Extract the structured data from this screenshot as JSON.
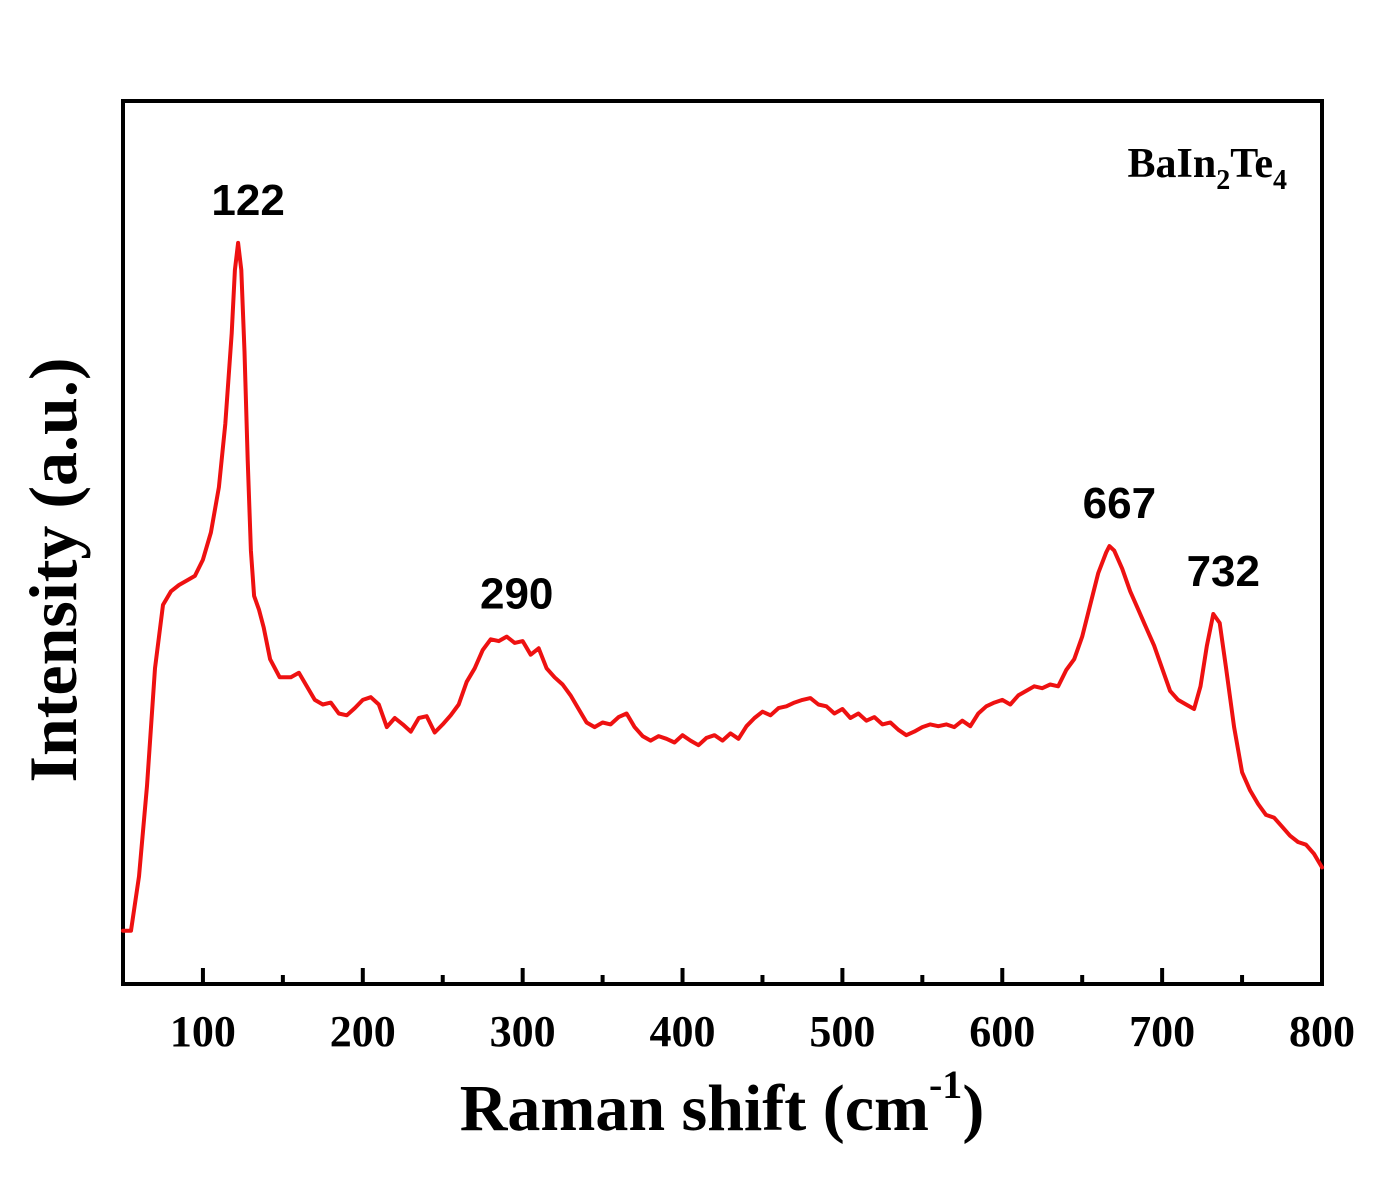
{
  "chart_data": {
    "type": "line",
    "title": "",
    "xlabel_main": "Raman shift (cm",
    "xlabel_sup": "-1",
    "xlabel_close": ")",
    "ylabel": "Intensity (a.u.)",
    "sample_label": {
      "parts": [
        {
          "text": "BaIn",
          "sub": false
        },
        {
          "text": "2",
          "sub": true
        },
        {
          "text": "Te",
          "sub": false
        },
        {
          "text": "4",
          "sub": true
        }
      ]
    },
    "xlim": [
      50,
      800
    ],
    "ylim": [
      0,
      100
    ],
    "x_ticks": [
      100,
      200,
      300,
      400,
      500,
      600,
      700,
      800
    ],
    "x_tick_labels": [
      "100",
      "200",
      "300",
      "400",
      "500",
      "600",
      "700",
      "800"
    ],
    "x_minor_ticks": [
      150,
      250,
      350,
      450,
      550,
      650,
      750
    ],
    "y_ticks_visible": false,
    "grid": false,
    "color": "#ee1111",
    "series": [
      {
        "points": [
          [
            50,
            6.0
          ],
          [
            55,
            6.0
          ],
          [
            60,
            12
          ],
          [
            65,
            22
          ],
          [
            70,
            35
          ],
          [
            75,
            42
          ],
          [
            80,
            43.5
          ],
          [
            85,
            44.2
          ],
          [
            90,
            44.7
          ],
          [
            95,
            45.2
          ],
          [
            100,
            47.0
          ],
          [
            105,
            50.0
          ],
          [
            110,
            55.0
          ],
          [
            114,
            62.0
          ],
          [
            118,
            72.0
          ],
          [
            120,
            79.0
          ],
          [
            122,
            82.0
          ],
          [
            124,
            79.0
          ],
          [
            126,
            70.0
          ],
          [
            128,
            58.0
          ],
          [
            130,
            48.0
          ],
          [
            132,
            43.0
          ],
          [
            135,
            41.5
          ],
          [
            138,
            39.5
          ],
          [
            142,
            36.0
          ],
          [
            148,
            34.0
          ],
          [
            155,
            34.0
          ],
          [
            160,
            34.5
          ],
          [
            165,
            33.0
          ],
          [
            170,
            31.5
          ],
          [
            175,
            31.0
          ],
          [
            180,
            31.2
          ],
          [
            185,
            30.0
          ],
          [
            190,
            29.8
          ],
          [
            195,
            30.6
          ],
          [
            200,
            31.5
          ],
          [
            205,
            31.8
          ],
          [
            210,
            31.0
          ],
          [
            215,
            28.5
          ],
          [
            220,
            29.5
          ],
          [
            225,
            28.8
          ],
          [
            230,
            28.0
          ],
          [
            235,
            29.5
          ],
          [
            240,
            29.7
          ],
          [
            245,
            27.9
          ],
          [
            250,
            28.8
          ],
          [
            255,
            29.8
          ],
          [
            260,
            31.0
          ],
          [
            265,
            33.5
          ],
          [
            270,
            35.0
          ],
          [
            275,
            37.0
          ],
          [
            280,
            38.2
          ],
          [
            285,
            38.0
          ],
          [
            290,
            38.5
          ],
          [
            295,
            37.8
          ],
          [
            300,
            38.0
          ],
          [
            305,
            36.5
          ],
          [
            310,
            37.2
          ],
          [
            315,
            35.0
          ],
          [
            320,
            34.0
          ],
          [
            325,
            33.2
          ],
          [
            330,
            32.0
          ],
          [
            335,
            30.5
          ],
          [
            340,
            29.0
          ],
          [
            345,
            28.5
          ],
          [
            350,
            29.0
          ],
          [
            355,
            28.8
          ],
          [
            360,
            29.6
          ],
          [
            365,
            30.0
          ],
          [
            370,
            28.5
          ],
          [
            375,
            27.5
          ],
          [
            380,
            27.0
          ],
          [
            385,
            27.5
          ],
          [
            390,
            27.2
          ],
          [
            395,
            26.8
          ],
          [
            400,
            27.6
          ],
          [
            405,
            27.0
          ],
          [
            410,
            26.5
          ],
          [
            415,
            27.3
          ],
          [
            420,
            27.6
          ],
          [
            425,
            27.0
          ],
          [
            430,
            27.8
          ],
          [
            435,
            27.2
          ],
          [
            440,
            28.6
          ],
          [
            445,
            29.5
          ],
          [
            450,
            30.2
          ],
          [
            455,
            29.8
          ],
          [
            460,
            30.6
          ],
          [
            465,
            30.8
          ],
          [
            470,
            31.2
          ],
          [
            475,
            31.5
          ],
          [
            480,
            31.7
          ],
          [
            485,
            31.0
          ],
          [
            490,
            30.8
          ],
          [
            495,
            30.0
          ],
          [
            500,
            30.5
          ],
          [
            505,
            29.5
          ],
          [
            510,
            30.0
          ],
          [
            515,
            29.2
          ],
          [
            520,
            29.6
          ],
          [
            525,
            28.8
          ],
          [
            530,
            29.0
          ],
          [
            535,
            28.2
          ],
          [
            540,
            27.6
          ],
          [
            545,
            28.0
          ],
          [
            550,
            28.5
          ],
          [
            555,
            28.8
          ],
          [
            560,
            28.6
          ],
          [
            565,
            28.8
          ],
          [
            570,
            28.5
          ],
          [
            575,
            29.2
          ],
          [
            580,
            28.6
          ],
          [
            585,
            30.0
          ],
          [
            590,
            30.8
          ],
          [
            595,
            31.2
          ],
          [
            600,
            31.5
          ],
          [
            605,
            31.0
          ],
          [
            610,
            32.0
          ],
          [
            615,
            32.5
          ],
          [
            620,
            33.0
          ],
          [
            625,
            32.8
          ],
          [
            630,
            33.2
          ],
          [
            635,
            33.0
          ],
          [
            640,
            34.8
          ],
          [
            645,
            36.0
          ],
          [
            650,
            38.5
          ],
          [
            655,
            42.0
          ],
          [
            660,
            45.5
          ],
          [
            665,
            47.8
          ],
          [
            667,
            48.5
          ],
          [
            670,
            48.0
          ],
          [
            675,
            46.0
          ],
          [
            680,
            43.5
          ],
          [
            685,
            41.5
          ],
          [
            690,
            39.5
          ],
          [
            695,
            37.5
          ],
          [
            700,
            35.0
          ],
          [
            705,
            32.5
          ],
          [
            710,
            31.5
          ],
          [
            715,
            31.0
          ],
          [
            720,
            30.5
          ],
          [
            724,
            33.0
          ],
          [
            728,
            37.5
          ],
          [
            732,
            41.0
          ],
          [
            736,
            40.0
          ],
          [
            740,
            35.0
          ],
          [
            745,
            28.5
          ],
          [
            750,
            23.5
          ],
          [
            755,
            21.5
          ],
          [
            760,
            20.0
          ],
          [
            765,
            18.8
          ],
          [
            770,
            18.5
          ],
          [
            775,
            17.5
          ],
          [
            780,
            16.5
          ],
          [
            785,
            15.8
          ],
          [
            790,
            15.5
          ],
          [
            795,
            14.5
          ],
          [
            800,
            13.0
          ]
        ]
      }
    ],
    "annotations": [
      {
        "text": "122",
        "x": 122,
        "y": 82.0
      },
      {
        "text": "290",
        "x": 290,
        "y": 38.5
      },
      {
        "text": "667",
        "x": 667,
        "y": 48.5
      },
      {
        "text": "732",
        "x": 732,
        "y": 41.0
      }
    ]
  }
}
